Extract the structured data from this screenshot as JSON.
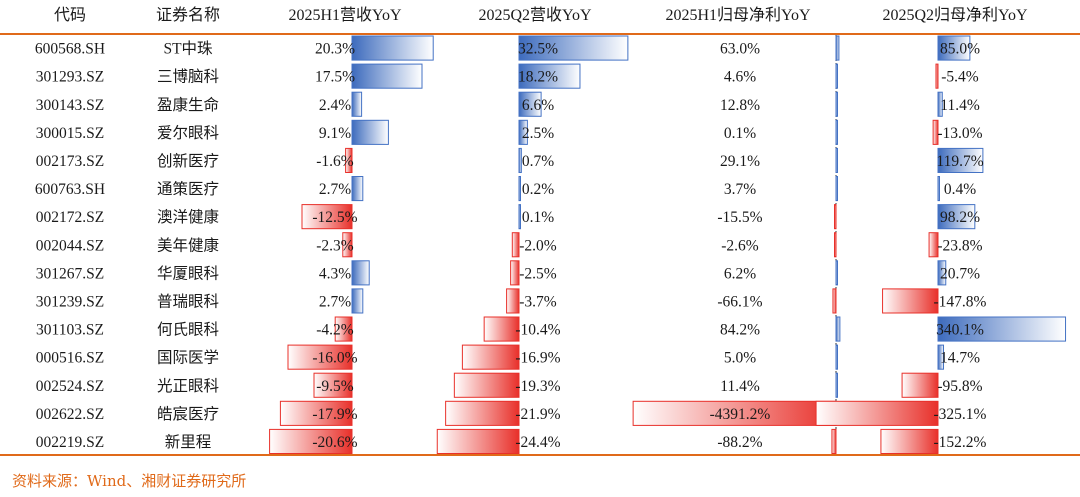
{
  "chart_data": {
    "type": "table",
    "headers": [
      "代码",
      "证券名称",
      "2025H1营收YoY",
      "2025Q2营收YoY",
      "2025H1归母净利YoY",
      "2025Q2归母净利YoY"
    ],
    "rows": [
      {
        "code": "600568.SH",
        "name": "ST中珠",
        "h1_rev": 20.3,
        "q2_rev": 32.5,
        "h1_np": 63.0,
        "q2_np": 85.0
      },
      {
        "code": "301293.SZ",
        "name": "三博脑科",
        "h1_rev": 17.5,
        "q2_rev": 18.2,
        "h1_np": 4.6,
        "q2_np": -5.4
      },
      {
        "code": "300143.SZ",
        "name": "盈康生命",
        "h1_rev": 2.4,
        "q2_rev": 6.6,
        "h1_np": 12.8,
        "q2_np": 11.4
      },
      {
        "code": "300015.SZ",
        "name": "爱尔眼科",
        "h1_rev": 9.1,
        "q2_rev": 2.5,
        "h1_np": 0.1,
        "q2_np": -13.0
      },
      {
        "code": "002173.SZ",
        "name": "创新医疗",
        "h1_rev": -1.6,
        "q2_rev": 0.7,
        "h1_np": 29.1,
        "q2_np": 119.7
      },
      {
        "code": "600763.SH",
        "name": "通策医疗",
        "h1_rev": 2.7,
        "q2_rev": 0.2,
        "h1_np": 3.7,
        "q2_np": 0.4
      },
      {
        "code": "002172.SZ",
        "name": "澳洋健康",
        "h1_rev": -12.5,
        "q2_rev": 0.1,
        "h1_np": -15.5,
        "q2_np": 98.2
      },
      {
        "code": "002044.SZ",
        "name": "美年健康",
        "h1_rev": -2.3,
        "q2_rev": -2.0,
        "h1_np": -2.6,
        "q2_np": -23.8
      },
      {
        "code": "301267.SZ",
        "name": "华厦眼科",
        "h1_rev": 4.3,
        "q2_rev": -2.5,
        "h1_np": 6.2,
        "q2_np": 20.7
      },
      {
        "code": "301239.SZ",
        "name": "普瑞眼科",
        "h1_rev": 2.7,
        "q2_rev": -3.7,
        "h1_np": -66.1,
        "q2_np": -147.8
      },
      {
        "code": "301103.SZ",
        "name": "何氏眼科",
        "h1_rev": -4.2,
        "q2_rev": -10.4,
        "h1_np": 84.2,
        "q2_np": 340.1
      },
      {
        "code": "000516.SZ",
        "name": "国际医学",
        "h1_rev": -16.0,
        "q2_rev": -16.9,
        "h1_np": 5.0,
        "q2_np": 14.7
      },
      {
        "code": "002524.SZ",
        "name": "光正眼科",
        "h1_rev": -9.5,
        "q2_rev": -19.3,
        "h1_np": 11.4,
        "q2_np": -95.8
      },
      {
        "code": "002622.SZ",
        "name": "皓宸医疗",
        "h1_rev": -17.9,
        "q2_rev": -21.9,
        "h1_np": -4391.2,
        "q2_np": -325.1
      },
      {
        "code": "002219.SZ",
        "name": "新里程",
        "h1_rev": -20.6,
        "q2_rev": -24.4,
        "h1_np": -88.2,
        "q2_np": -152.2
      }
    ],
    "value_unit": "%",
    "positive_color": "#4472c4",
    "negative_color": "#e8302a",
    "rule_color": "#e06a1a"
  },
  "source": "资料来源：Wind、湘财证券研究所"
}
